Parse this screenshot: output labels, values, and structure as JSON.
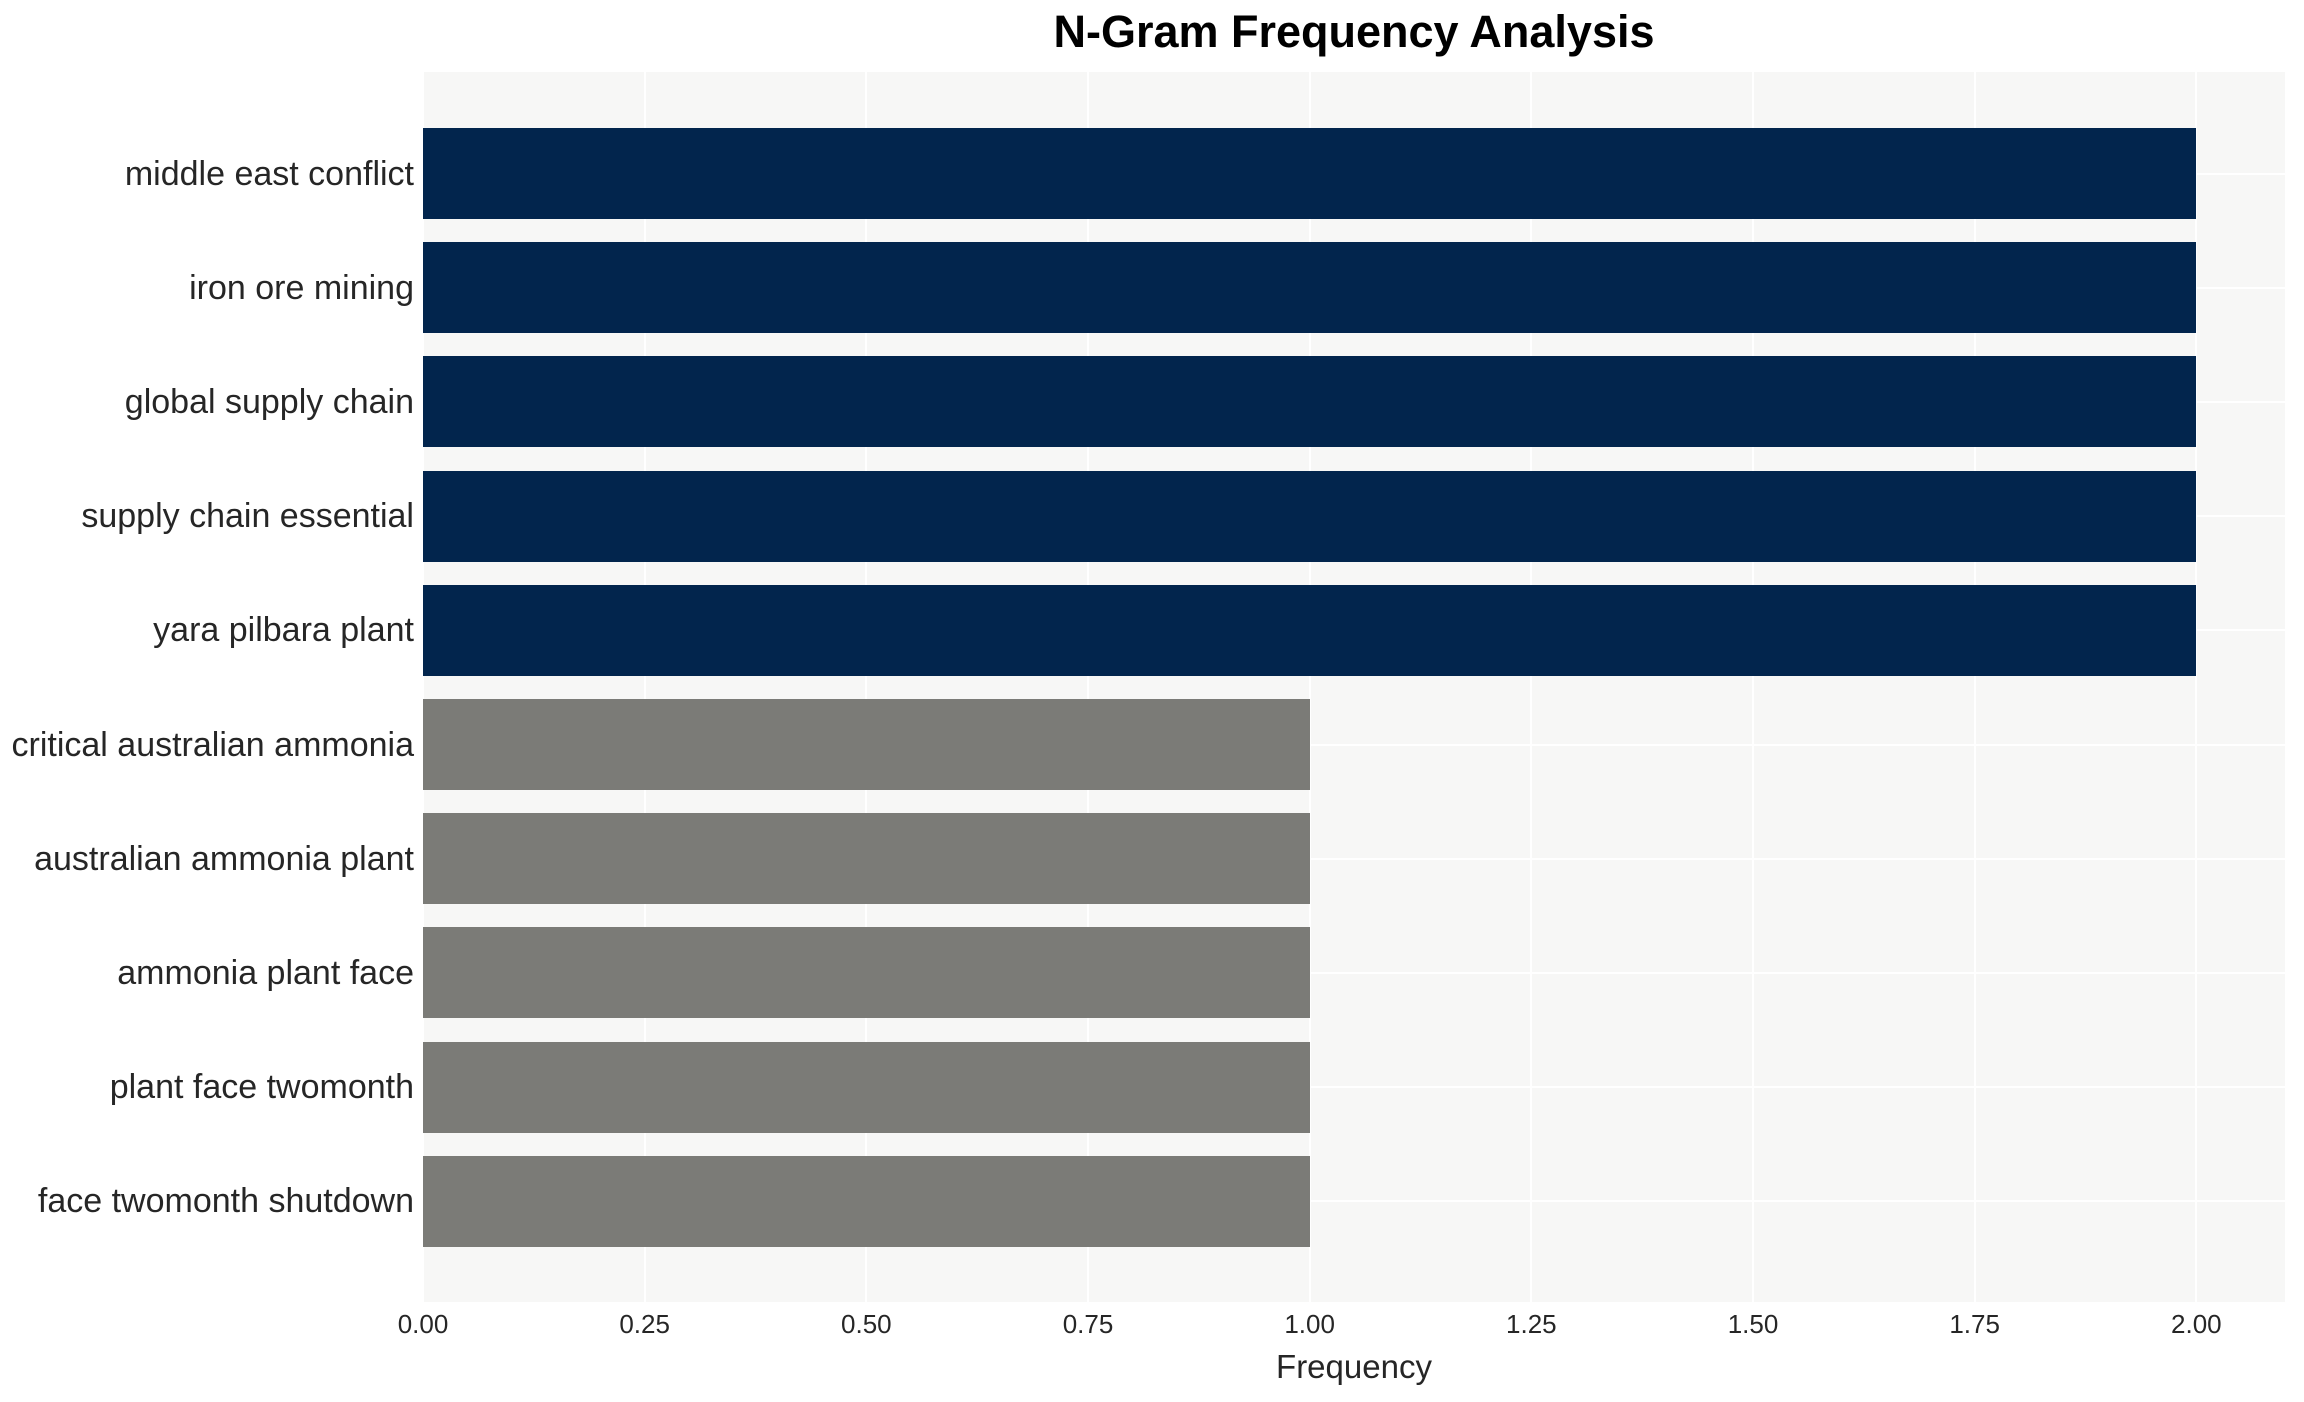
{
  "colors": {
    "figure_bg": "#ffffff",
    "plot_bg": "#f7f7f6",
    "grid": "#ffffff",
    "bar_frequency_2": "#02254d",
    "bar_frequency_1": "#7b7b77",
    "title_text": "#000000",
    "label_text": "#262626"
  },
  "chart_data": {
    "type": "bar",
    "orientation": "horizontal",
    "title": "N-Gram Frequency Analysis",
    "xlabel": "Frequency",
    "ylabel": "",
    "categories": [
      "middle east conflict",
      "iron ore mining",
      "global supply chain",
      "supply chain essential",
      "yara pilbara plant",
      "critical australian ammonia",
      "australian ammonia plant",
      "ammonia plant face",
      "plant face twomonth",
      "face twomonth shutdown"
    ],
    "values": [
      2,
      2,
      2,
      2,
      2,
      1,
      1,
      1,
      1,
      1
    ],
    "bar_colors": [
      "#02254d",
      "#02254d",
      "#02254d",
      "#02254d",
      "#02254d",
      "#7b7b77",
      "#7b7b77",
      "#7b7b77",
      "#7b7b77",
      "#7b7b77"
    ],
    "xlim": [
      0,
      2.1
    ],
    "xticks": [
      "0.00",
      "0.25",
      "0.50",
      "0.75",
      "1.00",
      "1.25",
      "1.50",
      "1.75",
      "2.00"
    ],
    "xtick_values": [
      0,
      0.25,
      0.5,
      0.75,
      1.0,
      1.25,
      1.5,
      1.75,
      2.0
    ],
    "grid": true,
    "legend": "none"
  }
}
